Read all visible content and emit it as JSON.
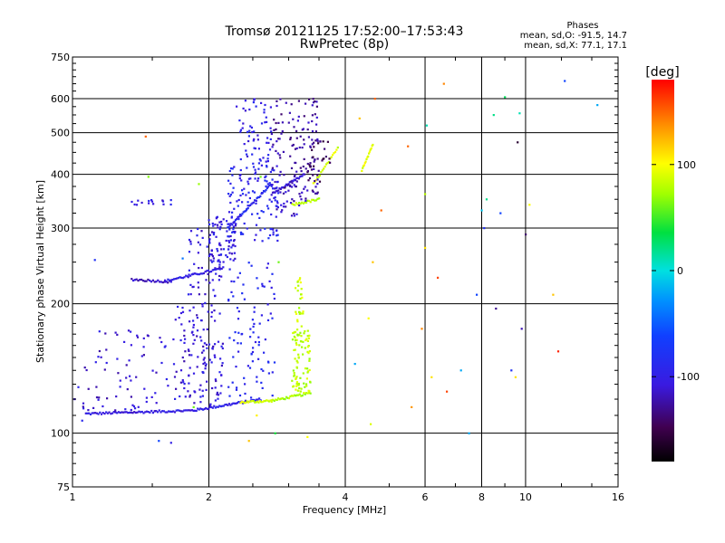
{
  "chart_data": {
    "type": "scatter",
    "title": "Tromsø 20121125 17:52:00–17:53:43",
    "subtitle": "RwPretec (8p)",
    "xlabel": "Frequency [MHz]",
    "ylabel": "Stationary phase Virtual Height [km]",
    "xscale": "log",
    "yscale": "log",
    "xlim": [
      1,
      16
    ],
    "ylim": [
      75,
      750
    ],
    "x_ticks": [
      1,
      2,
      4,
      6,
      8,
      10,
      16
    ],
    "y_ticks": [
      75,
      100,
      200,
      300,
      400,
      500,
      600,
      750
    ],
    "grid": true,
    "stats": {
      "heading": "Phases",
      "line_o": "mean, sd,O: -91.5, 14.7",
      "line_x": "mean, sd,X: 77.1, 17.1"
    },
    "colorbar": {
      "label": "[deg]",
      "range": [
        -180,
        180
      ],
      "ticks": [
        100,
        0,
        -100
      ]
    },
    "traces": [
      {
        "f_start": 1.07,
        "f_end": 1.85,
        "h_start": 111,
        "h_end": 113,
        "phase": -105,
        "count": 70
      },
      {
        "f_start": 1.85,
        "f_end": 2.6,
        "h_start": 113,
        "h_end": 120,
        "phase": -98,
        "count": 50
      },
      {
        "f_start": 2.35,
        "f_end": 2.75,
        "h_start": 118,
        "h_end": 119,
        "phase": 88,
        "count": 25
      },
      {
        "f_start": 2.75,
        "f_end": 3.35,
        "h_start": 119,
        "h_end": 124,
        "phase": 75,
        "count": 30
      },
      {
        "f_start": 1.35,
        "f_end": 1.65,
        "h_start": 228,
        "h_end": 225,
        "phase": -115,
        "count": 25
      },
      {
        "f_start": 1.6,
        "f_end": 2.15,
        "h_start": 226,
        "h_end": 242,
        "phase": -100,
        "count": 40
      },
      {
        "f_start": 2.2,
        "f_end": 2.75,
        "h_start": 300,
        "h_end": 380,
        "phase": -90,
        "count": 40
      },
      {
        "f_start": 2.75,
        "f_end": 3.25,
        "h_start": 360,
        "h_end": 400,
        "phase": -110,
        "count": 30
      },
      {
        "f_start": 3.05,
        "f_end": 3.5,
        "h_start": 340,
        "h_end": 350,
        "phase": 80,
        "count": 20
      },
      {
        "f_start": 3.4,
        "f_end": 3.85,
        "h_start": 380,
        "h_end": 460,
        "phase": 90,
        "count": 20
      },
      {
        "f_start": 4.35,
        "f_end": 4.6,
        "h_start": 410,
        "h_end": 470,
        "phase": 95,
        "count": 15
      }
    ],
    "clusters": [
      {
        "f_min": 1.05,
        "f_max": 1.6,
        "h_min": 112,
        "h_max": 175,
        "phase": -110,
        "count": 70
      },
      {
        "f_min": 1.6,
        "f_max": 2.0,
        "h_min": 120,
        "h_max": 200,
        "phase": -108,
        "count": 60
      },
      {
        "f_min": 1.8,
        "f_max": 2.15,
        "h_min": 115,
        "h_max": 300,
        "phase": -105,
        "count": 130
      },
      {
        "f_min": 2.0,
        "f_max": 2.3,
        "h_min": 250,
        "h_max": 320,
        "phase": -105,
        "count": 70
      },
      {
        "f_min": 2.2,
        "f_max": 2.8,
        "h_min": 120,
        "h_max": 250,
        "phase": -90,
        "count": 90
      },
      {
        "f_min": 2.2,
        "f_max": 2.85,
        "h_min": 280,
        "h_max": 420,
        "phase": -92,
        "count": 130
      },
      {
        "f_min": 2.3,
        "f_max": 2.75,
        "h_min": 420,
        "h_max": 600,
        "phase": -100,
        "count": 60
      },
      {
        "f_min": 2.75,
        "f_max": 3.5,
        "h_min": 360,
        "h_max": 600,
        "phase": -125,
        "count": 120
      },
      {
        "f_min": 2.8,
        "f_max": 3.3,
        "h_min": 320,
        "h_max": 380,
        "phase": -115,
        "count": 30
      },
      {
        "f_min": 3.05,
        "f_max": 3.35,
        "h_min": 123,
        "h_max": 175,
        "phase": 82,
        "count": 90
      },
      {
        "f_min": 3.1,
        "f_max": 3.25,
        "h_min": 175,
        "h_max": 230,
        "phase": 85,
        "count": 25
      },
      {
        "f_min": 3.3,
        "f_max": 3.7,
        "h_min": 380,
        "h_max": 480,
        "phase": -145,
        "count": 30
      },
      {
        "f_min": 1.3,
        "f_max": 1.65,
        "h_min": 340,
        "h_max": 350,
        "phase": -105,
        "count": 15
      }
    ],
    "scatter": [
      [
        1.01,
        120,
        -110
      ],
      [
        1.03,
        128,
        -95
      ],
      [
        1.05,
        107,
        -90
      ],
      [
        1.12,
        253,
        -80
      ],
      [
        1.45,
        490,
        150
      ],
      [
        1.47,
        395,
        65
      ],
      [
        1.55,
        96,
        -60
      ],
      [
        1.65,
        95,
        -100
      ],
      [
        1.75,
        255,
        -40
      ],
      [
        1.85,
        115,
        60
      ],
      [
        2.55,
        110,
        105
      ],
      [
        2.45,
        96,
        120
      ],
      [
        2.8,
        100,
        40
      ],
      [
        2.85,
        250,
        60
      ],
      [
        3.3,
        98,
        100
      ],
      [
        4.3,
        540,
        120
      ],
      [
        4.5,
        185,
        100
      ],
      [
        4.55,
        105,
        90
      ],
      [
        4.6,
        250,
        120
      ],
      [
        4.65,
        600,
        150
      ],
      [
        4.8,
        330,
        150
      ],
      [
        4.2,
        145,
        -20
      ],
      [
        5.5,
        465,
        150
      ],
      [
        5.6,
        115,
        135
      ],
      [
        5.9,
        175,
        140
      ],
      [
        6.0,
        270,
        110
      ],
      [
        6.0,
        360,
        80
      ],
      [
        6.05,
        520,
        10
      ],
      [
        6.2,
        135,
        110
      ],
      [
        6.4,
        230,
        160
      ],
      [
        6.6,
        650,
        140
      ],
      [
        6.7,
        125,
        160
      ],
      [
        7.2,
        140,
        -20
      ],
      [
        7.5,
        100,
        -20
      ],
      [
        7.8,
        210,
        -60
      ],
      [
        8.0,
        330,
        -10
      ],
      [
        8.1,
        300,
        -80
      ],
      [
        8.2,
        350,
        20
      ],
      [
        8.5,
        550,
        20
      ],
      [
        8.6,
        195,
        -130
      ],
      [
        8.8,
        325,
        -60
      ],
      [
        9.0,
        605,
        30
      ],
      [
        9.3,
        140,
        -80
      ],
      [
        9.5,
        135,
        110
      ],
      [
        9.6,
        475,
        -160
      ],
      [
        9.7,
        555,
        10
      ],
      [
        9.8,
        175,
        -120
      ],
      [
        10.0,
        290,
        -140
      ],
      [
        10.2,
        340,
        100
      ],
      [
        11.5,
        210,
        120
      ],
      [
        11.8,
        155,
        170
      ],
      [
        12.2,
        660,
        -60
      ],
      [
        14.4,
        580,
        -20
      ],
      [
        1.9,
        380,
        70
      ],
      [
        2.6,
        395,
        60
      ]
    ]
  }
}
